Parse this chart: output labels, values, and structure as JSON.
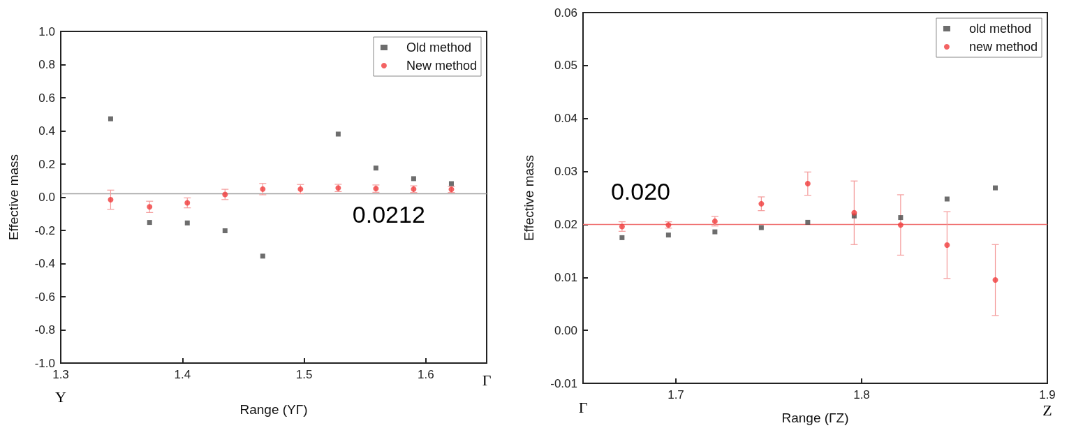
{
  "chart_data": [
    {
      "type": "scatter",
      "xlabel": "Range (YΓ)",
      "ylabel": "Effective mass",
      "x": [
        1.341,
        1.373,
        1.404,
        1.435,
        1.466,
        1.497,
        1.528,
        1.559,
        1.59,
        1.621
      ],
      "series": [
        {
          "name": "Old method",
          "color": "#484848",
          "marker": "square",
          "values": [
            0.473,
            -0.152,
            -0.155,
            -0.202,
            -0.355,
            null,
            0.381,
            0.176,
            0.112,
            0.082
          ]
        },
        {
          "name": "New method",
          "color": "#f03c3c",
          "marker": "circle",
          "values": [
            -0.015,
            -0.058,
            -0.034,
            0.017,
            0.049,
            0.049,
            0.056,
            0.052,
            0.049,
            0.047
          ],
          "errors": [
            0.058,
            0.034,
            0.03,
            0.031,
            0.034,
            0.028,
            0.022,
            0.022,
            0.02,
            0.018
          ]
        }
      ],
      "xlim": [
        1.3,
        1.65
      ],
      "xticks": [
        1.3,
        1.4,
        1.5,
        1.6
      ],
      "ylim": [
        -1.0,
        1.0
      ],
      "yticks": [
        {
          "value": -1.0,
          "label": "-1.0"
        },
        -0.8,
        -0.6,
        -0.4,
        -0.2,
        {
          "value": 0,
          "label": "0.0"
        },
        0.2,
        0.4,
        0.6,
        0.8,
        {
          "value": 1.0,
          "label": "1.0"
        }
      ],
      "ref_lines": [
        {
          "axis": "y",
          "value": 0.0212,
          "color": "#a0a0a0",
          "label": "0.0212"
        }
      ],
      "annotations": [
        "Y",
        "Γ"
      ],
      "legend": "top right",
      "grid": false
    },
    {
      "type": "scatter",
      "xlabel": "Range (ΓZ)",
      "ylabel": "Effective mass",
      "x": [
        1.671,
        1.696,
        1.721,
        1.746,
        1.771,
        1.796,
        1.821,
        1.846,
        1.872
      ],
      "series": [
        {
          "name": "old method",
          "color": "#484848",
          "marker": "square",
          "values": [
            0.0175,
            0.018,
            0.0186,
            0.0194,
            0.0204,
            0.0216,
            0.0213,
            0.0248,
            0.0269
          ]
        },
        {
          "name": "new method",
          "color": "#f03c3c",
          "marker": "circle",
          "values": [
            0.0196,
            0.0199,
            0.0206,
            0.0239,
            0.0277,
            0.0222,
            0.0199,
            0.0161,
            0.0095
          ],
          "errors": [
            0.0009,
            0.0006,
            0.0009,
            0.0013,
            0.0022,
            0.006,
            0.0057,
            0.0063,
            0.0067
          ]
        }
      ],
      "xlim": [
        1.65,
        1.9
      ],
      "xticks": [
        1.7,
        1.8,
        1.9
      ],
      "ylim": [
        -0.01,
        0.06
      ],
      "yticks": [
        -0.01,
        {
          "value": 0,
          "label": "0.00"
        },
        0.01,
        0.02,
        0.03,
        0.04,
        0.05,
        0.06
      ],
      "ref_lines": [
        {
          "axis": "y",
          "value": 0.02,
          "color": "#f07070",
          "label": "0.020"
        }
      ],
      "annotations": [
        "Γ",
        "Z"
      ],
      "legend": "top right",
      "grid": false
    }
  ]
}
